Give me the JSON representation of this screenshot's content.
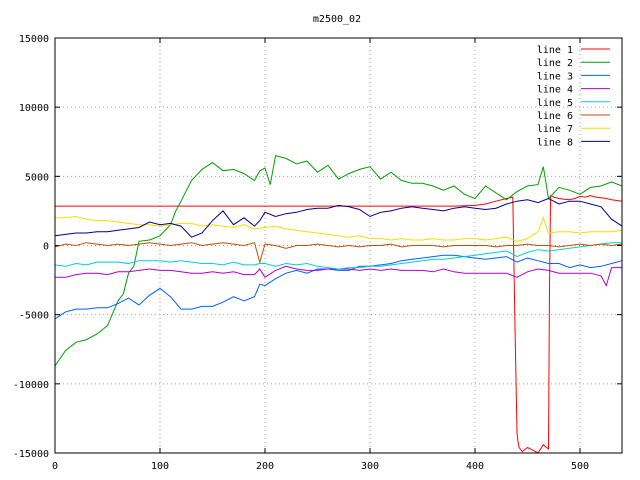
{
  "chart_data": {
    "type": "line",
    "title": "m2500_02",
    "xlabel": "",
    "ylabel": "",
    "xlim": [
      0,
      540
    ],
    "ylim": [
      -15000,
      15000
    ],
    "xticks": [
      0,
      100,
      200,
      300,
      400,
      500
    ],
    "yticks": [
      -15000,
      -10000,
      -5000,
      0,
      5000,
      10000,
      15000
    ],
    "grid": true,
    "legend_position": "top-right",
    "series": [
      {
        "name": "line 1",
        "color": "#ff0000",
        "x": [
          0,
          100,
          200,
          300,
          380,
          400,
          410,
          420,
          430,
          436,
          438,
          440,
          441,
          442,
          445,
          450,
          455,
          460,
          465,
          468,
          470,
          471,
          472,
          475,
          480,
          485,
          490,
          495,
          500,
          505,
          510,
          515,
          520,
          525,
          530,
          535,
          540
        ],
        "y": [
          2850,
          2850,
          2850,
          2850,
          2850,
          2900,
          3000,
          3200,
          3400,
          3500,
          -5500,
          -13500,
          -14200,
          -14600,
          -14900,
          -14600,
          -14800,
          -15000,
          -14400,
          -14600,
          -14700,
          -3000,
          3600,
          3500,
          3400,
          3350,
          3300,
          3400,
          3550,
          3500,
          3600,
          3500,
          3450,
          3400,
          3300,
          3250,
          3200
        ]
      },
      {
        "name": "line 2",
        "color": "#00a000",
        "x": [
          0,
          10,
          20,
          30,
          40,
          50,
          60,
          65,
          70,
          75,
          80,
          90,
          100,
          110,
          115,
          120,
          130,
          140,
          150,
          160,
          170,
          180,
          190,
          195,
          200,
          205,
          210,
          220,
          230,
          240,
          250,
          260,
          270,
          280,
          290,
          300,
          310,
          320,
          330,
          340,
          350,
          360,
          370,
          380,
          390,
          400,
          410,
          420,
          430,
          440,
          450,
          460,
          465,
          470,
          480,
          490,
          500,
          510,
          520,
          530,
          540
        ],
        "y": [
          -8700,
          -7600,
          -7000,
          -6800,
          -6400,
          -5800,
          -4000,
          -3500,
          -2000,
          -1500,
          300,
          400,
          700,
          1500,
          2500,
          3200,
          4700,
          5500,
          6000,
          5400,
          5500,
          5200,
          4700,
          5400,
          5600,
          4400,
          6500,
          6300,
          5900,
          6100,
          5300,
          5800,
          4800,
          5200,
          5500,
          5700,
          4800,
          5300,
          4700,
          4500,
          4500,
          4300,
          4000,
          4300,
          3700,
          3400,
          4300,
          3800,
          3300,
          3900,
          4300,
          4400,
          5700,
          3400,
          4200,
          4000,
          3700,
          4200,
          4300,
          4600,
          4300
        ]
      },
      {
        "name": "line 3",
        "color": "#0060ff",
        "x": [
          0,
          10,
          20,
          30,
          40,
          50,
          60,
          70,
          80,
          90,
          100,
          110,
          120,
          130,
          140,
          150,
          160,
          170,
          180,
          190,
          195,
          200,
          210,
          220,
          230,
          240,
          250,
          260,
          270,
          280,
          290,
          300,
          310,
          320,
          330,
          340,
          350,
          360,
          370,
          380,
          390,
          400,
          410,
          420,
          430,
          440,
          450,
          460,
          470,
          480,
          490,
          500,
          510,
          520,
          530,
          540
        ],
        "y": [
          -5300,
          -4800,
          -4600,
          -4600,
          -4500,
          -4500,
          -4200,
          -3800,
          -4300,
          -3600,
          -3100,
          -3700,
          -4600,
          -4600,
          -4400,
          -4400,
          -4100,
          -3700,
          -4000,
          -3700,
          -2800,
          -2900,
          -2400,
          -2000,
          -1800,
          -2000,
          -1700,
          -1700,
          -1800,
          -1800,
          -1500,
          -1500,
          -1400,
          -1300,
          -1100,
          -1000,
          -900,
          -800,
          -700,
          -700,
          -800,
          -900,
          -1000,
          -900,
          -800,
          -1200,
          -900,
          -1100,
          -1300,
          -1300,
          -1600,
          -1400,
          -1600,
          -1500,
          -1300,
          -1100
        ]
      },
      {
        "name": "line 4",
        "color": "#b000d0",
        "x": [
          0,
          10,
          20,
          30,
          40,
          50,
          60,
          70,
          80,
          90,
          100,
          110,
          120,
          130,
          140,
          150,
          160,
          170,
          180,
          190,
          195,
          200,
          210,
          220,
          230,
          240,
          250,
          260,
          270,
          280,
          290,
          300,
          310,
          320,
          330,
          340,
          350,
          360,
          370,
          380,
          390,
          400,
          410,
          420,
          430,
          440,
          450,
          460,
          470,
          480,
          490,
          500,
          510,
          520,
          525,
          530,
          540
        ],
        "y": [
          -2300,
          -2300,
          -2100,
          -2000,
          -2000,
          -2100,
          -1900,
          -1900,
          -1800,
          -1700,
          -1800,
          -1800,
          -1900,
          -2000,
          -2000,
          -1900,
          -2000,
          -1900,
          -2100,
          -2100,
          -1700,
          -2300,
          -1800,
          -1500,
          -1700,
          -1800,
          -1800,
          -1700,
          -1700,
          -1700,
          -1800,
          -1700,
          -1800,
          -1700,
          -1800,
          -1800,
          -1800,
          -1900,
          -1700,
          -1900,
          -2000,
          -2000,
          -2000,
          -2000,
          -2000,
          -2300,
          -1900,
          -1700,
          -1800,
          -2000,
          -2000,
          -2000,
          -2000,
          -2200,
          -2900,
          -1600,
          -1600
        ]
      },
      {
        "name": "line 5",
        "color": "#00d0d0",
        "x": [
          0,
          10,
          20,
          30,
          40,
          50,
          60,
          70,
          80,
          90,
          100,
          110,
          120,
          130,
          140,
          150,
          160,
          170,
          180,
          190,
          195,
          200,
          210,
          220,
          230,
          240,
          250,
          260,
          270,
          280,
          290,
          300,
          310,
          320,
          330,
          340,
          350,
          360,
          370,
          380,
          390,
          400,
          410,
          420,
          430,
          440,
          450,
          460,
          470,
          480,
          490,
          500,
          510,
          520,
          530,
          540
        ],
        "y": [
          -1400,
          -1500,
          -1300,
          -1400,
          -1200,
          -1200,
          -1200,
          -1300,
          -1100,
          -1100,
          -1100,
          -1200,
          -1100,
          -1200,
          -1300,
          -1300,
          -1400,
          -1200,
          -1400,
          -1400,
          -1300,
          -1300,
          -1500,
          -1300,
          -1400,
          -1300,
          -1500,
          -1600,
          -1700,
          -1600,
          -1600,
          -1500,
          -1500,
          -1400,
          -1300,
          -1200,
          -1100,
          -1000,
          -1000,
          -900,
          -800,
          -700,
          -600,
          -500,
          -400,
          -800,
          -500,
          -300,
          -400,
          -300,
          -200,
          -100,
          0,
          100,
          200,
          200
        ]
      },
      {
        "name": "line 6",
        "color": "#c05000",
        "x": [
          0,
          10,
          20,
          30,
          40,
          50,
          60,
          70,
          80,
          90,
          100,
          110,
          120,
          130,
          140,
          150,
          160,
          170,
          180,
          190,
          195,
          200,
          210,
          220,
          230,
          240,
          250,
          260,
          270,
          280,
          290,
          300,
          310,
          320,
          330,
          340,
          350,
          360,
          370,
          380,
          390,
          400,
          410,
          420,
          430,
          440,
          450,
          460,
          470,
          480,
          490,
          500,
          510,
          520,
          530,
          540
        ],
        "y": [
          -100,
          100,
          0,
          200,
          100,
          0,
          100,
          0,
          100,
          200,
          100,
          0,
          100,
          200,
          0,
          100,
          200,
          100,
          0,
          200,
          -1200,
          100,
          0,
          -200,
          0,
          0,
          100,
          0,
          -100,
          0,
          -100,
          0,
          0,
          100,
          -100,
          0,
          0,
          0,
          -100,
          0,
          0,
          0,
          0,
          -100,
          0,
          0,
          100,
          0,
          0,
          -100,
          0,
          100,
          0,
          100,
          0,
          100
        ]
      },
      {
        "name": "line 7",
        "color": "#f0e000",
        "x": [
          0,
          10,
          20,
          30,
          40,
          50,
          60,
          70,
          80,
          90,
          100,
          110,
          120,
          130,
          140,
          150,
          160,
          170,
          180,
          190,
          200,
          210,
          220,
          230,
          240,
          250,
          260,
          270,
          280,
          290,
          300,
          310,
          320,
          330,
          340,
          350,
          360,
          370,
          380,
          390,
          400,
          410,
          420,
          430,
          440,
          450,
          460,
          465,
          470,
          480,
          490,
          500,
          510,
          520,
          530,
          540
        ],
        "y": [
          2000,
          2000,
          2100,
          1900,
          1800,
          1800,
          1700,
          1600,
          1500,
          1500,
          1400,
          1500,
          1600,
          1600,
          1400,
          1500,
          1400,
          1300,
          1500,
          1200,
          1300,
          1400,
          1200,
          1100,
          1000,
          900,
          800,
          700,
          600,
          700,
          500,
          500,
          400,
          500,
          400,
          400,
          500,
          400,
          400,
          500,
          500,
          400,
          500,
          600,
          300,
          500,
          1000,
          2000,
          900,
          1000,
          1000,
          900,
          1000,
          1000,
          1000,
          1100
        ]
      },
      {
        "name": "line 8",
        "color": "#000090",
        "x": [
          0,
          10,
          20,
          30,
          40,
          50,
          60,
          70,
          80,
          90,
          100,
          110,
          120,
          130,
          140,
          150,
          160,
          170,
          180,
          190,
          195,
          200,
          210,
          220,
          230,
          240,
          250,
          260,
          270,
          280,
          290,
          300,
          310,
          320,
          330,
          340,
          350,
          360,
          370,
          380,
          390,
          400,
          410,
          420,
          430,
          440,
          450,
          460,
          470,
          480,
          490,
          500,
          510,
          520,
          530,
          540
        ],
        "y": [
          700,
          800,
          900,
          900,
          1000,
          1000,
          1100,
          1200,
          1300,
          1700,
          1500,
          1600,
          1400,
          600,
          900,
          1800,
          2500,
          1500,
          2000,
          1400,
          1800,
          2400,
          2100,
          2300,
          2400,
          2600,
          2700,
          2700,
          2900,
          2800,
          2600,
          2100,
          2400,
          2500,
          2700,
          2800,
          2700,
          2600,
          2500,
          2700,
          2800,
          2700,
          2600,
          2700,
          3000,
          3200,
          3300,
          3100,
          3400,
          3000,
          3200,
          3200,
          3000,
          2800,
          1900,
          1400
        ]
      }
    ]
  }
}
